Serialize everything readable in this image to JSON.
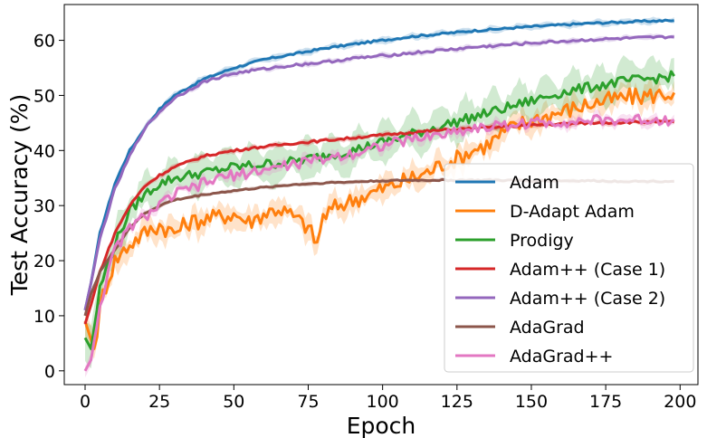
{
  "chart_data": {
    "type": "line",
    "xlabel": "Epoch",
    "ylabel": "Test Accuracy (%)",
    "xlim": [
      -7,
      206
    ],
    "ylim": [
      -2.5,
      66.5
    ],
    "xticks": [
      0,
      25,
      50,
      75,
      100,
      125,
      150,
      175,
      200
    ],
    "yticks": [
      0,
      10,
      20,
      30,
      40,
      50,
      60
    ],
    "grid": false,
    "legend_position": "lower-right",
    "series": [
      {
        "name": "Adam",
        "color": "#1f77b4",
        "band": 0.5,
        "points": [
          [
            0,
            11
          ],
          [
            2,
            16
          ],
          [
            5,
            25
          ],
          [
            10,
            34
          ],
          [
            15,
            40
          ],
          [
            20,
            44
          ],
          [
            25,
            47.5
          ],
          [
            30,
            50
          ],
          [
            35,
            51.5
          ],
          [
            40,
            53
          ],
          [
            50,
            55
          ],
          [
            60,
            56.5
          ],
          [
            70,
            57.5
          ],
          [
            80,
            58.5
          ],
          [
            90,
            59.3
          ],
          [
            100,
            60
          ],
          [
            110,
            60.7
          ],
          [
            120,
            61.2
          ],
          [
            130,
            61.7
          ],
          [
            140,
            62.1
          ],
          [
            150,
            62.5
          ],
          [
            160,
            62.8
          ],
          [
            170,
            63.1
          ],
          [
            180,
            63.3
          ],
          [
            190,
            63.5
          ],
          [
            198,
            63.6
          ]
        ]
      },
      {
        "name": "D-Adapt Adam",
        "color": "#ff7f0e",
        "band": 1.8,
        "points": [
          [
            0,
            9
          ],
          [
            3,
            4
          ],
          [
            6,
            14
          ],
          [
            10,
            20
          ],
          [
            15,
            23
          ],
          [
            20,
            25
          ],
          [
            25,
            26.5
          ],
          [
            30,
            25
          ],
          [
            35,
            27
          ],
          [
            40,
            27.5
          ],
          [
            45,
            28
          ],
          [
            50,
            28.5
          ],
          [
            55,
            27
          ],
          [
            60,
            28.5
          ],
          [
            65,
            29.5
          ],
          [
            70,
            28
          ],
          [
            75,
            26
          ],
          [
            78,
            23
          ],
          [
            80,
            28
          ],
          [
            85,
            30
          ],
          [
            90,
            31
          ],
          [
            95,
            32
          ],
          [
            100,
            33
          ],
          [
            105,
            34
          ],
          [
            110,
            35
          ],
          [
            115,
            36
          ],
          [
            120,
            37.5
          ],
          [
            125,
            38.5
          ],
          [
            130,
            40
          ],
          [
            135,
            41
          ],
          [
            140,
            43
          ],
          [
            145,
            44.5
          ],
          [
            150,
            45.5
          ],
          [
            160,
            47
          ],
          [
            170,
            48.5
          ],
          [
            180,
            49.5
          ],
          [
            190,
            50
          ],
          [
            198,
            50.5
          ]
        ]
      },
      {
        "name": "Prodigy",
        "color": "#2ca02c",
        "band": 2.8,
        "points": [
          [
            0,
            6
          ],
          [
            2,
            4
          ],
          [
            5,
            15
          ],
          [
            10,
            23
          ],
          [
            15,
            29
          ],
          [
            20,
            32
          ],
          [
            25,
            34
          ],
          [
            30,
            35
          ],
          [
            40,
            36
          ],
          [
            50,
            37
          ],
          [
            60,
            37.5
          ],
          [
            70,
            38
          ],
          [
            80,
            39
          ],
          [
            90,
            40
          ],
          [
            100,
            41.5
          ],
          [
            110,
            43
          ],
          [
            120,
            44.5
          ],
          [
            130,
            46
          ],
          [
            140,
            47.5
          ],
          [
            150,
            49
          ],
          [
            160,
            50.5
          ],
          [
            170,
            51.5
          ],
          [
            180,
            52.5
          ],
          [
            190,
            53
          ],
          [
            198,
            53.5
          ]
        ]
      },
      {
        "name": "Adam++ (Case 1)",
        "color": "#d62728",
        "band": 0.4,
        "points": [
          [
            0,
            8.5
          ],
          [
            2,
            12
          ],
          [
            5,
            18
          ],
          [
            10,
            25
          ],
          [
            15,
            30
          ],
          [
            20,
            33.5
          ],
          [
            25,
            35.5
          ],
          [
            30,
            37
          ],
          [
            35,
            38
          ],
          [
            40,
            39
          ],
          [
            50,
            40
          ],
          [
            60,
            40.7
          ],
          [
            70,
            41.3
          ],
          [
            80,
            41.8
          ],
          [
            90,
            42.3
          ],
          [
            100,
            42.8
          ],
          [
            110,
            43.3
          ],
          [
            120,
            43.7
          ],
          [
            130,
            44
          ],
          [
            140,
            44.3
          ],
          [
            150,
            44.6
          ],
          [
            160,
            44.8
          ],
          [
            170,
            45
          ],
          [
            180,
            45.1
          ],
          [
            190,
            45.2
          ],
          [
            198,
            45.2
          ]
        ]
      },
      {
        "name": "Adam++ (Case 2)",
        "color": "#9467bd",
        "band": 0.4,
        "points": [
          [
            0,
            11
          ],
          [
            2,
            16
          ],
          [
            5,
            24
          ],
          [
            10,
            33
          ],
          [
            15,
            39
          ],
          [
            20,
            44
          ],
          [
            25,
            47
          ],
          [
            30,
            49.5
          ],
          [
            35,
            51
          ],
          [
            40,
            52.5
          ],
          [
            50,
            54
          ],
          [
            60,
            54.8
          ],
          [
            70,
            55.5
          ],
          [
            80,
            56
          ],
          [
            90,
            56.7
          ],
          [
            100,
            57.2
          ],
          [
            110,
            57.7
          ],
          [
            120,
            58.2
          ],
          [
            130,
            58.7
          ],
          [
            140,
            59.1
          ],
          [
            150,
            59.5
          ],
          [
            160,
            59.8
          ],
          [
            170,
            60.1
          ],
          [
            180,
            60.3
          ],
          [
            190,
            60.5
          ],
          [
            198,
            60.6
          ]
        ]
      },
      {
        "name": "AdaGrad",
        "color": "#8c564b",
        "band": 0.3,
        "points": [
          [
            0,
            10
          ],
          [
            2,
            14
          ],
          [
            5,
            18
          ],
          [
            10,
            22
          ],
          [
            15,
            26
          ],
          [
            20,
            28.5
          ],
          [
            25,
            30
          ],
          [
            30,
            31
          ],
          [
            40,
            32
          ],
          [
            50,
            32.7
          ],
          [
            60,
            33.3
          ],
          [
            70,
            33.8
          ],
          [
            80,
            34.1
          ],
          [
            90,
            34.3
          ],
          [
            100,
            34.5
          ],
          [
            110,
            34.6
          ],
          [
            120,
            34.6
          ],
          [
            130,
            34.6
          ],
          [
            140,
            34.6
          ],
          [
            150,
            34.5
          ],
          [
            160,
            34.5
          ],
          [
            170,
            34.5
          ],
          [
            180,
            34.4
          ],
          [
            190,
            34.4
          ],
          [
            198,
            34.4
          ]
        ]
      },
      {
        "name": "AdaGrad++",
        "color": "#e377c2",
        "band": 0.8,
        "points": [
          [
            0,
            0
          ],
          [
            2,
            2
          ],
          [
            5,
            12
          ],
          [
            10,
            22
          ],
          [
            15,
            26
          ],
          [
            20,
            28
          ],
          [
            25,
            30
          ],
          [
            30,
            32
          ],
          [
            35,
            33
          ],
          [
            40,
            34
          ],
          [
            45,
            35
          ],
          [
            50,
            35.5
          ],
          [
            55,
            36
          ],
          [
            60,
            36.5
          ],
          [
            65,
            37
          ],
          [
            70,
            37.5
          ],
          [
            75,
            38
          ],
          [
            80,
            38.5
          ],
          [
            90,
            39.5
          ],
          [
            100,
            41
          ],
          [
            110,
            42
          ],
          [
            120,
            43
          ],
          [
            130,
            44
          ],
          [
            140,
            44.5
          ],
          [
            150,
            45
          ],
          [
            160,
            45.2
          ],
          [
            170,
            45.4
          ],
          [
            180,
            45.5
          ],
          [
            190,
            45.6
          ],
          [
            198,
            45.6
          ]
        ]
      }
    ]
  }
}
